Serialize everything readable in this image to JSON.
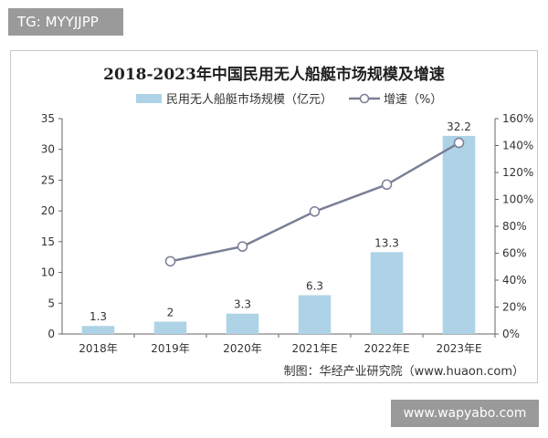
{
  "watermark_top": "TG: MYYJJPP",
  "watermark_bottom": "www.wapyabo.com",
  "source": "制图：华经产业研究院（www.huaon.com）",
  "colors": {
    "bar": "#aed3e6",
    "line": "#7a7f96",
    "axis": "#666666",
    "grid": "#d9d9d9"
  },
  "chart_data": {
    "type": "bar",
    "title": "2018-2023年中国民用无人船艇市场规模及增速",
    "categories": [
      "2018年",
      "2019年",
      "2020年",
      "2021年E",
      "2022年E",
      "2023年E"
    ],
    "series": [
      {
        "name": "民用无人船艇市场规模（亿元）",
        "type": "bar",
        "axis": "left",
        "values": [
          1.3,
          2,
          3.3,
          6.3,
          13.3,
          32.2
        ],
        "labels": [
          "1.3",
          "2",
          "3.3",
          "6.3",
          "13.3",
          "32.2"
        ]
      },
      {
        "name": "增速（%）",
        "type": "line",
        "axis": "right",
        "values": [
          null,
          54,
          65,
          91,
          111,
          142
        ]
      }
    ],
    "y_left": {
      "min": 0,
      "max": 35,
      "ticks": [
        "0",
        "5",
        "10",
        "15",
        "20",
        "25",
        "30",
        "35"
      ]
    },
    "y_right": {
      "min": 0,
      "max": 160,
      "ticks": [
        "0%",
        "20%",
        "40%",
        "60%",
        "80%",
        "100%",
        "120%",
        "140%",
        "160%"
      ]
    },
    "legend_position": "top",
    "grid": false
  }
}
